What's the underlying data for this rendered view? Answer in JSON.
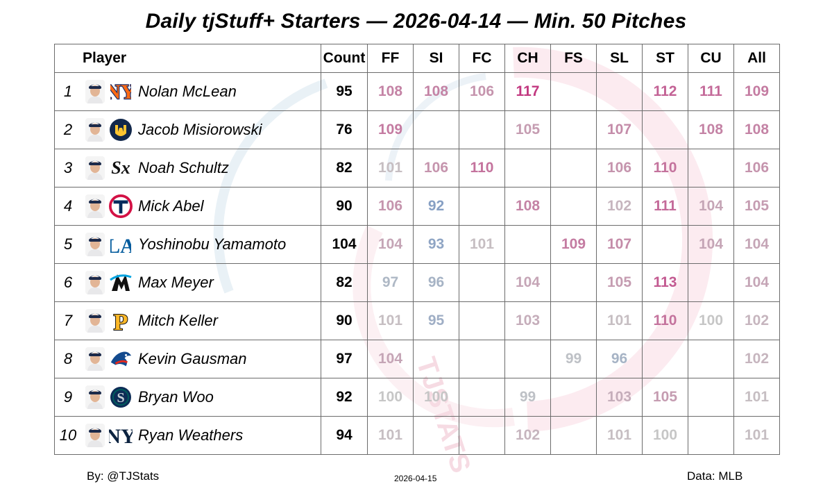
{
  "title": "Daily tjStuff+ Starters — 2026-04-14 — Min. 50 Pitches",
  "headers": {
    "player": "Player",
    "count": "Count",
    "pitches": [
      "FF",
      "SI",
      "FC",
      "CH",
      "FS",
      "SL",
      "ST",
      "CU",
      "All"
    ]
  },
  "rows": [
    {
      "rank": "1",
      "name": "Nolan McLean",
      "team_logo": "mets-logo",
      "count": "95",
      "values": [
        "108",
        "108",
        "106",
        "117",
        "",
        "",
        "112",
        "111",
        "109"
      ]
    },
    {
      "rank": "2",
      "name": "Jacob Misiorowski",
      "team_logo": "brewers-logo",
      "count": "76",
      "values": [
        "109",
        "",
        "",
        "105",
        "",
        "107",
        "",
        "108",
        "108"
      ]
    },
    {
      "rank": "3",
      "name": "Noah Schultz",
      "team_logo": "white-sox-logo",
      "count": "82",
      "values": [
        "101",
        "106",
        "110",
        "",
        "",
        "106",
        "110",
        "",
        "106"
      ]
    },
    {
      "rank": "4",
      "name": "Mick Abel",
      "team_logo": "twins-logo",
      "count": "90",
      "values": [
        "106",
        "92",
        "",
        "108",
        "",
        "102",
        "111",
        "104",
        "105"
      ]
    },
    {
      "rank": "5",
      "name": "Yoshinobu Yamamoto",
      "team_logo": "dodgers-logo",
      "count": "104",
      "values": [
        "104",
        "93",
        "101",
        "",
        "109",
        "107",
        "",
        "104",
        "104"
      ]
    },
    {
      "rank": "6",
      "name": "Max Meyer",
      "team_logo": "marlins-logo",
      "count": "82",
      "values": [
        "97",
        "96",
        "",
        "104",
        "",
        "105",
        "113",
        "",
        "104"
      ]
    },
    {
      "rank": "7",
      "name": "Mitch Keller",
      "team_logo": "pirates-logo",
      "count": "90",
      "values": [
        "101",
        "95",
        "",
        "103",
        "",
        "101",
        "110",
        "100",
        "102"
      ]
    },
    {
      "rank": "8",
      "name": "Kevin Gausman",
      "team_logo": "blue-jays-logo",
      "count": "97",
      "values": [
        "104",
        "",
        "",
        "",
        "99",
        "96",
        "",
        "",
        "102"
      ]
    },
    {
      "rank": "9",
      "name": "Bryan Woo",
      "team_logo": "mariners-logo",
      "count": "92",
      "values": [
        "100",
        "100",
        "",
        "99",
        "",
        "103",
        "105",
        "",
        "101"
      ]
    },
    {
      "rank": "10",
      "name": "Ryan Weathers",
      "team_logo": "yankees-logo",
      "count": "94",
      "values": [
        "101",
        "",
        "",
        "102",
        "",
        "101",
        "100",
        "",
        "101"
      ]
    }
  ],
  "footer": {
    "left": "By: @TJStats",
    "center": "2026-04-15",
    "right": "Data: MLB"
  },
  "color_scale": {
    "low": "#7f9bc4",
    "neutral": "#c6c6c6",
    "high": "#c2307c"
  },
  "watermark_text": "TJSTATS",
  "chart_data": {
    "type": "table",
    "title": "Daily tjStuff+ Starters — 2026-04-14 — Min. 50 Pitches",
    "columns": [
      "Player",
      "Count",
      "FF",
      "SI",
      "FC",
      "CH",
      "FS",
      "SL",
      "ST",
      "CU",
      "All"
    ],
    "rows": [
      [
        "Nolan McLean",
        95,
        108,
        108,
        106,
        117,
        null,
        null,
        112,
        111,
        109
      ],
      [
        "Jacob Misiorowski",
        76,
        109,
        null,
        null,
        105,
        null,
        107,
        null,
        108,
        108
      ],
      [
        "Noah Schultz",
        82,
        101,
        106,
        110,
        null,
        null,
        106,
        110,
        null,
        106
      ],
      [
        "Mick Abel",
        90,
        106,
        92,
        null,
        108,
        null,
        102,
        111,
        104,
        105
      ],
      [
        "Yoshinobu Yamamoto",
        104,
        104,
        93,
        101,
        null,
        109,
        107,
        null,
        104,
        104
      ],
      [
        "Max Meyer",
        82,
        97,
        96,
        null,
        104,
        null,
        105,
        113,
        null,
        104
      ],
      [
        "Mitch Keller",
        90,
        101,
        95,
        null,
        103,
        null,
        101,
        110,
        100,
        102
      ],
      [
        "Kevin Gausman",
        97,
        104,
        null,
        null,
        null,
        99,
        96,
        null,
        null,
        102
      ],
      [
        "Bryan Woo",
        92,
        100,
        100,
        null,
        99,
        null,
        103,
        105,
        null,
        101
      ],
      [
        "Ryan Weathers",
        94,
        101,
        null,
        null,
        102,
        null,
        101,
        100,
        null,
        101
      ]
    ]
  }
}
